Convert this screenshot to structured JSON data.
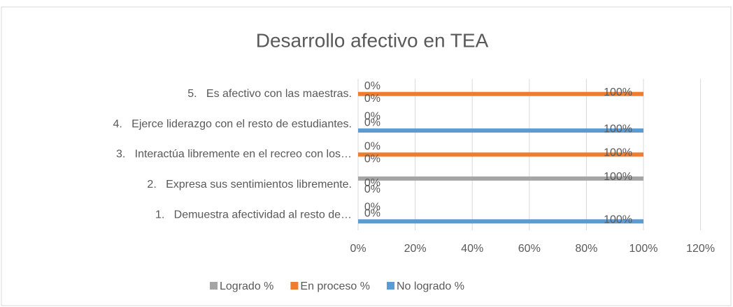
{
  "chart_data": {
    "type": "bar",
    "orientation": "horizontal",
    "title": "Desarrollo afectivo en TEA",
    "categories": [
      "1.   Demuestra afectividad al resto de…",
      "2.   Expresa sus sentimientos libremente.",
      "3.   Interactúa libremente en el recreo con los…",
      "4.   Ejerce liderazgo con el resto de estudiantes.",
      "5.   Es afectivo con las maestras."
    ],
    "series": [
      {
        "name": "Logrado %",
        "color": "#a5a5a5",
        "values": [
          0,
          100,
          0,
          0,
          0
        ],
        "value_labels": [
          "0%",
          "100%",
          "0%",
          "0%",
          "0%"
        ]
      },
      {
        "name": "En proceso %",
        "color": "#ed7d31",
        "values": [
          0,
          0,
          100,
          0,
          100
        ],
        "value_labels": [
          "0%",
          "0%",
          "100%",
          "0%",
          "100%"
        ]
      },
      {
        "name": "No logrado %",
        "color": "#5b9bd5",
        "values": [
          100,
          0,
          0,
          100,
          0
        ],
        "value_labels": [
          "100%",
          "0%",
          "0%",
          "100%",
          "0%"
        ]
      }
    ],
    "xlim": [
      0,
      120
    ],
    "xticks": [
      {
        "value": 0,
        "label": "0%"
      },
      {
        "value": 20,
        "label": "20%"
      },
      {
        "value": 40,
        "label": "40%"
      },
      {
        "value": 60,
        "label": "60%"
      },
      {
        "value": 80,
        "label": "80%"
      },
      {
        "value": 100,
        "label": "100%"
      },
      {
        "value": 120,
        "label": "120%"
      }
    ],
    "grid": true,
    "legend": "bottom"
  }
}
